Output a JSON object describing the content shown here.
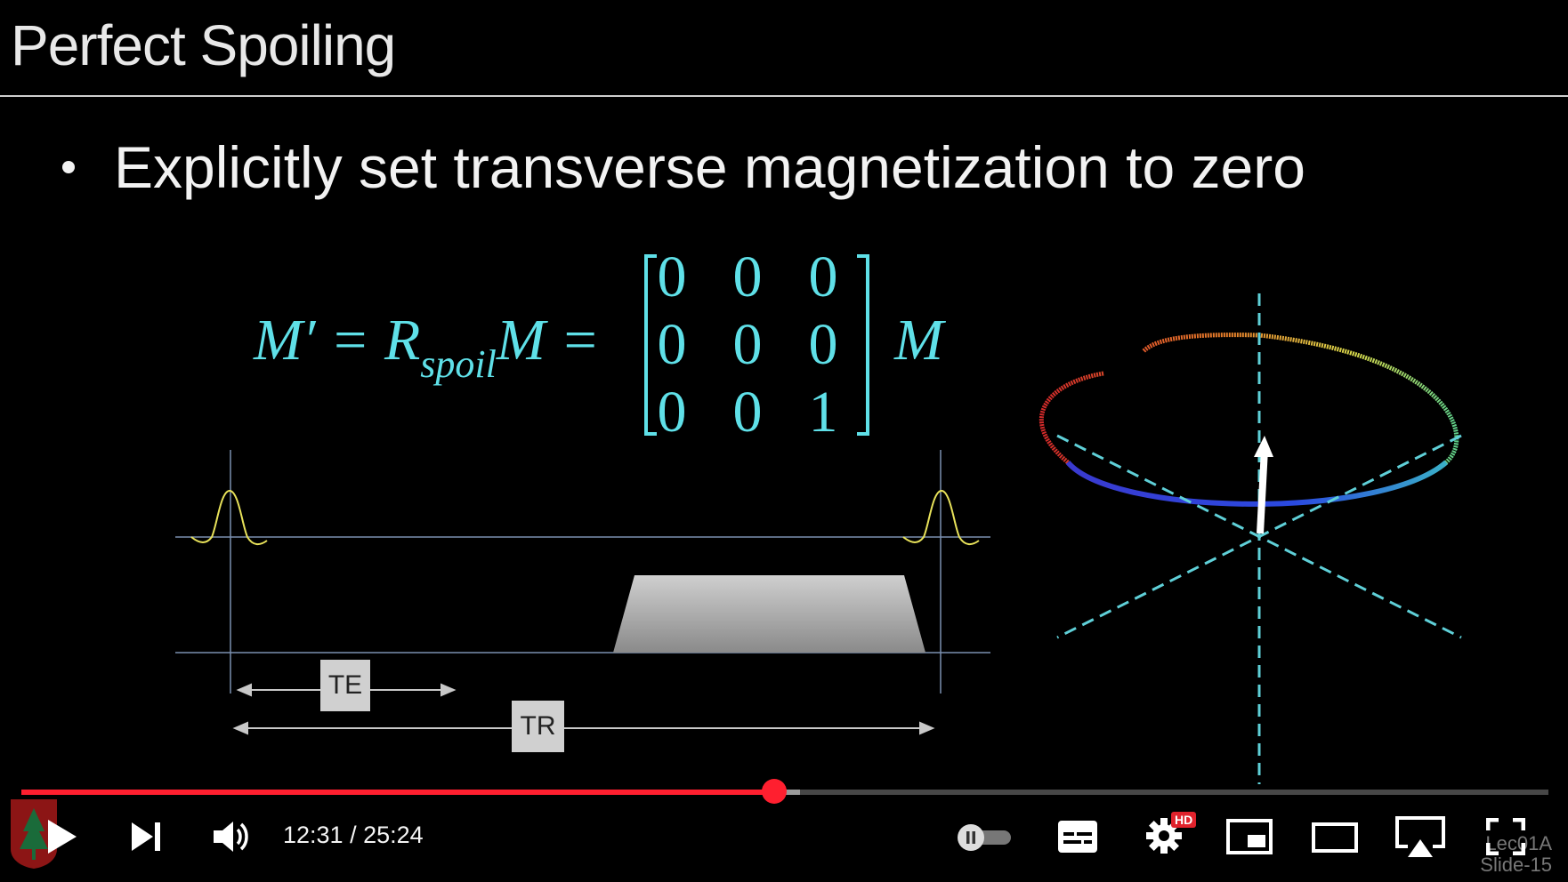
{
  "slide": {
    "title": "Perfect Spoiling",
    "bullet": "Explicitly set transverse magnetization to zero",
    "equation": {
      "lhs": "M′ = R",
      "sub": "spoil",
      "mid": "M =",
      "rhs": "M",
      "matrix": [
        [
          "0",
          "0",
          "0"
        ],
        [
          "0",
          "0",
          "0"
        ],
        [
          "0",
          "0",
          "1"
        ]
      ]
    },
    "diagram": {
      "te_label": "TE",
      "tr_label": "TR"
    },
    "slide_id_line1": "Lec01A",
    "slide_id_line2": "Slide-15"
  },
  "player": {
    "current_time": "12:31",
    "separator": " / ",
    "duration": "25:24",
    "progress_fraction": 0.4929,
    "loaded_fraction": 0.51,
    "hd_badge": "HD",
    "accent_color": "#ff1f2f",
    "icons": {
      "play": "play-icon",
      "next": "next-icon",
      "volume": "volume-icon",
      "autoplay": "autoplay-toggle-icon",
      "captions": "captions-icon",
      "settings": "gear-icon",
      "miniplayer": "miniplayer-icon",
      "theater": "theater-mode-icon",
      "airplay": "airplay-icon",
      "fullscreen": "fullscreen-icon",
      "channel": "tree-seal-icon"
    }
  }
}
